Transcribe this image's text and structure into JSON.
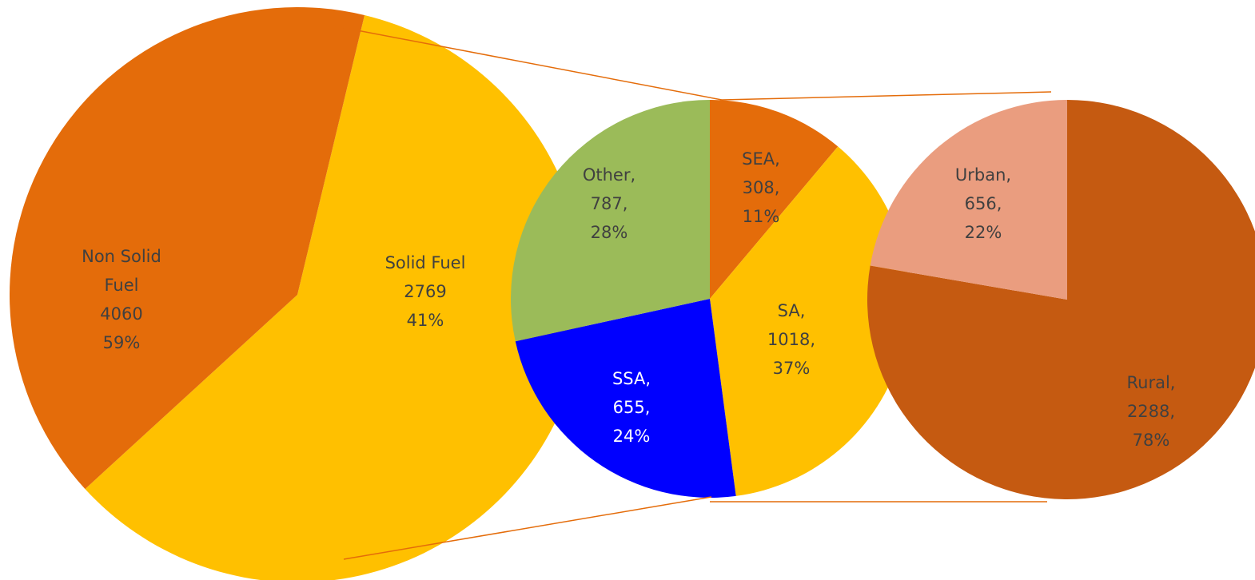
{
  "chart_data": [
    {
      "type": "pie",
      "categories": [
        "Non Solid Fuel",
        "Solid Fuel"
      ],
      "values": [
        4060,
        2769
      ],
      "percent_labels": [
        "59%",
        "41%"
      ],
      "colors": [
        "#FFC000",
        "#E46C0A"
      ]
    },
    {
      "type": "pie",
      "categories": [
        "SEA,",
        "SA,",
        "SSA,",
        "Other,"
      ],
      "values": [
        308,
        1018,
        655,
        787
      ],
      "value_labels": [
        "308,",
        "1018,",
        "655,",
        "787,"
      ],
      "percent_labels": [
        "11%",
        "37%",
        "24%",
        "28%"
      ],
      "colors": [
        "#E46C0A",
        "#FFC000",
        "#0000FF",
        "#9BBB59"
      ]
    },
    {
      "type": "pie",
      "categories": [
        "Rural,",
        "Urban,"
      ],
      "values": [
        2288,
        656
      ],
      "value_labels": [
        "2288,",
        "656,"
      ],
      "percent_labels": [
        "78%",
        "22%"
      ],
      "colors": [
        "#C55A11",
        "#EA9D7F"
      ]
    }
  ]
}
